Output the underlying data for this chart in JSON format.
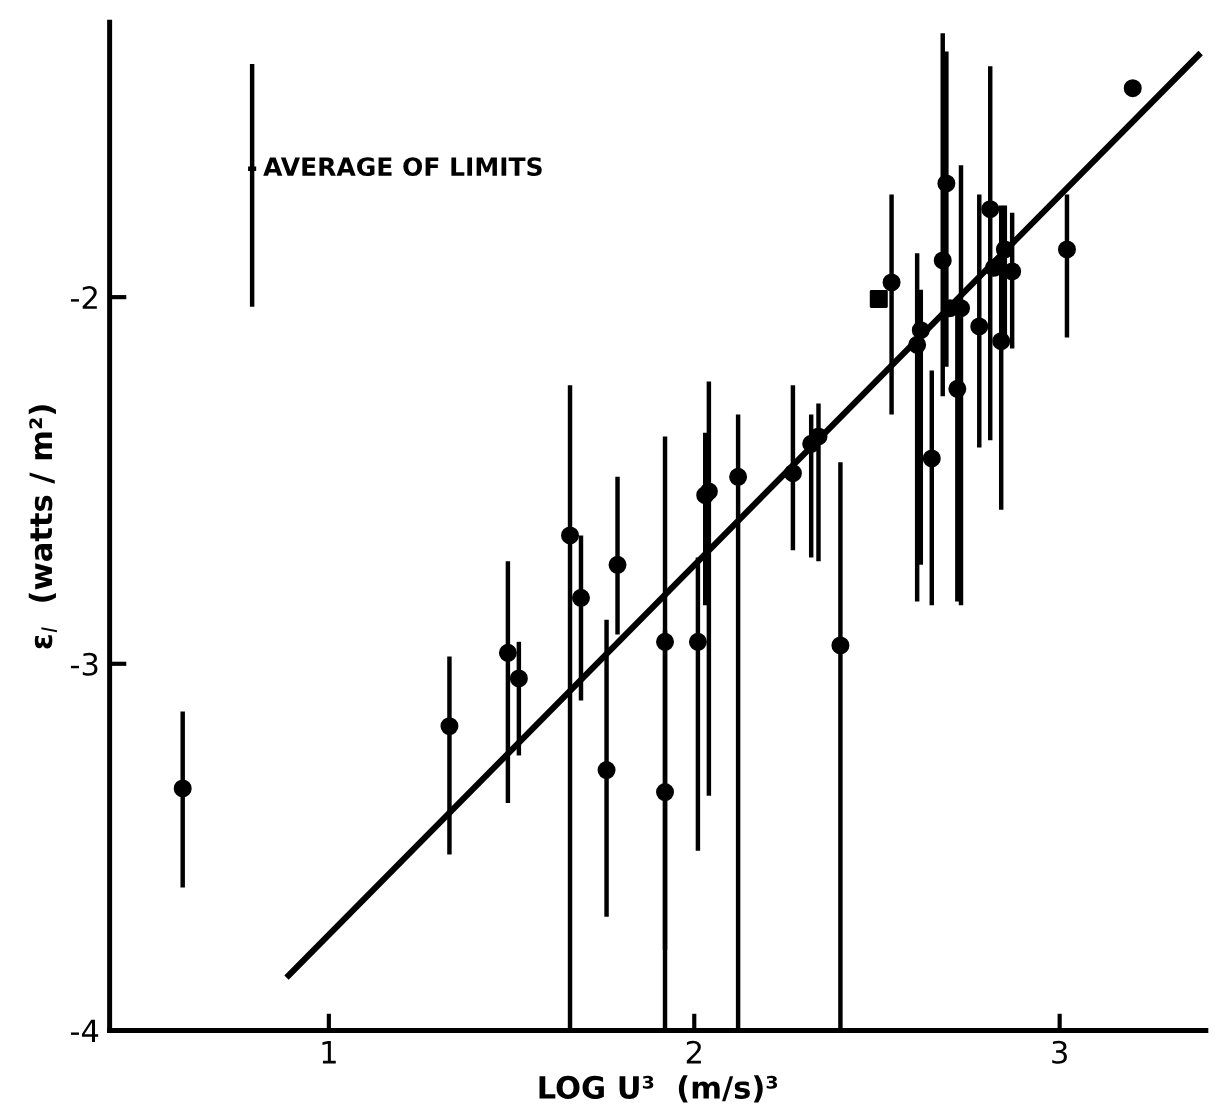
{
  "chart_data": {
    "type": "scatter",
    "xlabel": "LOG U³  (m/s)³",
    "ylabel": "ε$_{I}$  (watts / m²)",
    "xlim": [
      0.4,
      3.4
    ],
    "ylim": [
      -4,
      -1.25
    ],
    "xticks": [
      1,
      2,
      3
    ],
    "yticks": [
      -4,
      -3,
      -2
    ],
    "grid": false,
    "legend": false,
    "annotations": [
      "AVERAGE OF LIMITS"
    ],
    "series": [
      {
        "marker": "circle",
        "color": "#000000",
        "x": [
          0.6,
          1.33,
          1.49,
          1.52,
          1.66,
          1.69,
          1.79,
          1.76,
          1.92,
          1.92,
          2.01,
          2.03,
          2.04,
          2.12,
          2.27,
          2.32,
          2.34,
          2.4,
          2.54,
          2.61,
          2.62,
          2.65,
          2.68,
          2.69,
          2.7,
          2.72,
          2.73,
          2.78,
          2.81,
          2.82,
          2.84,
          2.85,
          2.87,
          3.02,
          3.2
        ],
        "values": [
          -3.34,
          -3.17,
          -2.97,
          -3.04,
          -2.65,
          -2.82,
          -2.73,
          -3.29,
          -3.35,
          -2.94,
          -2.94,
          -2.54,
          -2.53,
          -2.49,
          -2.48,
          -2.4,
          -2.38,
          -2.95,
          -1.96,
          -2.13,
          -2.09,
          -2.44,
          -1.9,
          -1.69,
          -2.03,
          -2.25,
          -2.03,
          -2.08,
          -1.76,
          -1.92,
          -2.12,
          -1.87,
          -1.93,
          -1.87,
          -1.43
        ],
        "errors": [
          [
            -3.61,
            -3.13
          ],
          [
            -3.52,
            -2.98
          ],
          [
            -3.38,
            -2.72
          ],
          [
            -3.25,
            -2.94
          ],
          [
            -4,
            -2.24
          ],
          [
            -3.1,
            -2.65
          ],
          [
            -2.92,
            -2.49
          ],
          [
            -3.69,
            -2.88
          ],
          [
            -3.78,
            -2.91
          ],
          [
            -4,
            -2.38
          ],
          [
            -3.51,
            -2.71
          ],
          [
            -2.84,
            -2.37
          ],
          [
            -3.36,
            -2.23
          ],
          [
            -4,
            -2.32
          ],
          [
            -2.69,
            -2.24
          ],
          [
            -2.71,
            -2.32
          ],
          [
            -2.72,
            -2.29
          ],
          [
            -4,
            -2.45
          ],
          [
            -2.32,
            -1.72
          ],
          [
            -2.83,
            -1.88
          ],
          [
            -2.73,
            -1.98
          ],
          [
            -2.84,
            -2.2
          ],
          [
            -2.27,
            -1.28
          ],
          [
            -2.19,
            -1.33
          ],
          null,
          [
            -2.83,
            -2.0
          ],
          [
            -2.84,
            -1.64
          ],
          [
            -2.41,
            -1.72
          ],
          [
            -2.39,
            -1.37
          ],
          null,
          [
            -2.58,
            -1.75
          ],
          [
            -2.12,
            -1.75
          ],
          [
            -2.14,
            -1.77
          ],
          [
            -2.11,
            -1.72
          ],
          null
        ]
      },
      {
        "marker": "square",
        "color": "#000000",
        "x": [
          2.505
        ],
        "values": [
          -2.005
        ]
      },
      {
        "type": "line",
        "color": "#000000",
        "x": [
          0.89,
          3.38
        ],
        "values": [
          -3.85,
          -1.34
        ]
      }
    ]
  }
}
